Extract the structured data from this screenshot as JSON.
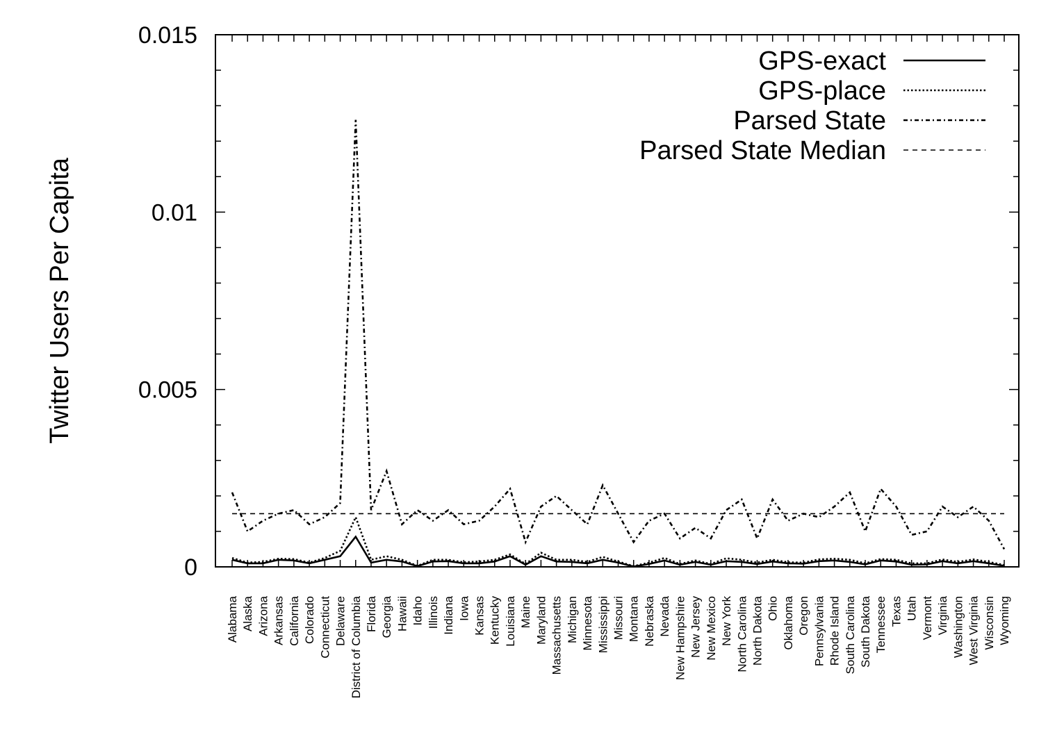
{
  "chart_data": {
    "type": "line",
    "title": "",
    "xlabel": "",
    "ylabel": "Twitter Users Per Capita",
    "ylim": [
      0,
      0.015
    ],
    "yticks": [
      {
        "value": 0,
        "label": "0"
      },
      {
        "value": 0.005,
        "label": "0.005"
      },
      {
        "value": 0.01,
        "label": "0.01"
      },
      {
        "value": 0.015,
        "label": "0.015"
      }
    ],
    "legend_position": "top-right",
    "categories": [
      "Alabama",
      "Alaska",
      "Arizona",
      "Arkansas",
      "California",
      "Colorado",
      "Connecticut",
      "Delaware",
      "District of Columbia",
      "Florida",
      "Georgia",
      "Hawaii",
      "Idaho",
      "Illinois",
      "Indiana",
      "Iowa",
      "Kansas",
      "Kentucky",
      "Louisiana",
      "Maine",
      "Maryland",
      "Massachusetts",
      "Michigan",
      "Minnesota",
      "Mississippi",
      "Missouri",
      "Montana",
      "Nebraska",
      "Nevada",
      "New Hampshire",
      "New Jersey",
      "New Mexico",
      "New York",
      "North Carolina",
      "North Dakota",
      "Ohio",
      "Oklahoma",
      "Oregon",
      "Pennsylvania",
      "Rhode Island",
      "South Carolina",
      "South Dakota",
      "Tennessee",
      "Texas",
      "Utah",
      "Vermont",
      "Virginia",
      "Washington",
      "West Virginia",
      "Wisconsin",
      "Wyoming"
    ],
    "series": [
      {
        "name": "GPS-exact",
        "dash": "solid",
        "values": [
          0.0002,
          0.0001,
          0.0001,
          0.0002,
          0.00018,
          0.0001,
          0.0002,
          0.0003,
          0.00085,
          0.00012,
          0.0002,
          0.00015,
          2e-05,
          0.00015,
          0.00016,
          0.0001,
          0.0001,
          0.00015,
          0.0003,
          6e-05,
          0.0003,
          0.00015,
          0.00014,
          0.0001,
          0.0002,
          0.00012,
          1e-05,
          8e-05,
          0.00018,
          6e-05,
          0.00014,
          6e-05,
          0.00016,
          0.00014,
          8e-05,
          0.00015,
          0.0001,
          9e-05,
          0.00016,
          0.00018,
          0.00014,
          7e-05,
          0.00018,
          0.00015,
          6e-05,
          7e-05,
          0.00016,
          0.0001,
          0.00016,
          0.0001,
          3e-05
        ]
      },
      {
        "name": "GPS-place",
        "dash": "dotted",
        "values": [
          0.00025,
          0.00012,
          0.00014,
          0.00023,
          0.00022,
          0.00012,
          0.00025,
          0.00045,
          0.0014,
          0.0002,
          0.0003,
          0.0002,
          3e-05,
          0.0002,
          0.0002,
          0.00013,
          0.00015,
          0.0002,
          0.00035,
          8e-05,
          0.0004,
          0.0002,
          0.0002,
          0.00014,
          0.00028,
          0.00015,
          2e-05,
          0.00012,
          0.00025,
          8e-05,
          0.00018,
          8e-05,
          0.00024,
          0.0002,
          0.00012,
          0.0002,
          0.00013,
          0.00012,
          0.00021,
          0.00023,
          0.0002,
          0.0001,
          0.00022,
          0.0002,
          0.0001,
          0.0001,
          0.00021,
          0.00014,
          0.00021,
          0.00014,
          5e-05
        ]
      },
      {
        "name": "Parsed State",
        "dash": "dash-dot",
        "values": [
          0.0021,
          0.001,
          0.0013,
          0.0015,
          0.0016,
          0.0012,
          0.0014,
          0.0018,
          0.0126,
          0.0016,
          0.0027,
          0.0012,
          0.0016,
          0.0013,
          0.0016,
          0.0012,
          0.0013,
          0.0017,
          0.0022,
          0.0007,
          0.0017,
          0.002,
          0.0016,
          0.0012,
          0.0023,
          0.0015,
          0.0007,
          0.0013,
          0.0015,
          0.0008,
          0.0011,
          0.0008,
          0.0016,
          0.0019,
          0.0008,
          0.0019,
          0.0013,
          0.0015,
          0.0014,
          0.0017,
          0.0021,
          0.001,
          0.0022,
          0.0017,
          0.0009,
          0.001,
          0.0017,
          0.0014,
          0.0017,
          0.0013,
          0.0005
        ]
      },
      {
        "name": "Parsed State Median",
        "dash": "dashed",
        "values": [
          0.0015,
          0.0015,
          0.0015,
          0.0015,
          0.0015,
          0.0015,
          0.0015,
          0.0015,
          0.0015,
          0.0015,
          0.0015,
          0.0015,
          0.0015,
          0.0015,
          0.0015,
          0.0015,
          0.0015,
          0.0015,
          0.0015,
          0.0015,
          0.0015,
          0.0015,
          0.0015,
          0.0015,
          0.0015,
          0.0015,
          0.0015,
          0.0015,
          0.0015,
          0.0015,
          0.0015,
          0.0015,
          0.0015,
          0.0015,
          0.0015,
          0.0015,
          0.0015,
          0.0015,
          0.0015,
          0.0015,
          0.0015,
          0.0015,
          0.0015,
          0.0015,
          0.0015,
          0.0015,
          0.0015,
          0.0015,
          0.0015,
          0.0015,
          0.0015
        ]
      }
    ]
  }
}
